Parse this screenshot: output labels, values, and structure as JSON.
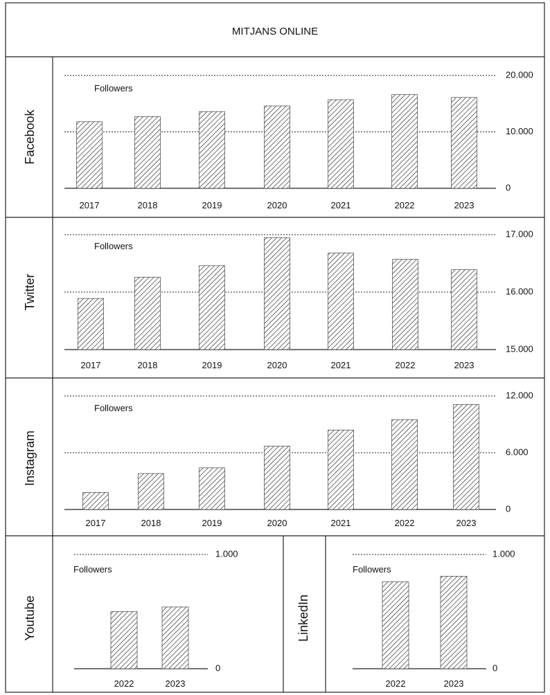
{
  "page": {
    "title": "MITJANS ONLINE"
  },
  "chart_data": [
    {
      "type": "bar",
      "platform": "Facebook",
      "series_label": "Followers",
      "categories": [
        "2017",
        "2018",
        "2019",
        "2020",
        "2021",
        "2022",
        "2023"
      ],
      "values": [
        11800,
        12700,
        13600,
        14600,
        15700,
        16600,
        16100
      ],
      "ylim": [
        0,
        20000
      ],
      "ticks": [
        {
          "value": 0,
          "label": "0"
        },
        {
          "value": 10000,
          "label": "10.000"
        },
        {
          "value": 20000,
          "label": "20.000"
        }
      ]
    },
    {
      "type": "bar",
      "platform": "Twitter",
      "series_label": "Followers",
      "categories": [
        "2017",
        "2018",
        "2019",
        "2020",
        "2021",
        "2022",
        "2023"
      ],
      "values": [
        15890,
        16260,
        16460,
        16950,
        16680,
        16570,
        16390
      ],
      "ylim": [
        15000,
        17000
      ],
      "ticks": [
        {
          "value": 15000,
          "label": "15.000"
        },
        {
          "value": 16000,
          "label": "16.000"
        },
        {
          "value": 17000,
          "label": "17.000"
        }
      ]
    },
    {
      "type": "bar",
      "platform": "Instagram",
      "series_label": "Followers",
      "categories": [
        "2017",
        "2018",
        "2019",
        "2020",
        "2021",
        "2022",
        "2023"
      ],
      "values": [
        1800,
        3800,
        4400,
        6700,
        8400,
        9500,
        11100
      ],
      "ylim": [
        0,
        12000
      ],
      "ticks": [
        {
          "value": 0,
          "label": "0"
        },
        {
          "value": 6000,
          "label": "6.000"
        },
        {
          "value": 12000,
          "label": "12.000"
        }
      ]
    },
    {
      "type": "bar",
      "platform": "Youtube",
      "series_label": "Followers",
      "categories": [
        "2022",
        "2023"
      ],
      "values": [
        500,
        540
      ],
      "ylim": [
        0,
        1000
      ],
      "ticks": [
        {
          "value": 0,
          "label": "0"
        },
        {
          "value": 1000,
          "label": "1.000"
        }
      ]
    },
    {
      "type": "bar",
      "platform": "LinkedIn",
      "series_label": "Followers",
      "categories": [
        "2022",
        "2023"
      ],
      "values": [
        760,
        810
      ],
      "ylim": [
        0,
        1000
      ],
      "ticks": [
        {
          "value": 0,
          "label": "0"
        },
        {
          "value": 1000,
          "label": "1.000"
        }
      ]
    }
  ]
}
